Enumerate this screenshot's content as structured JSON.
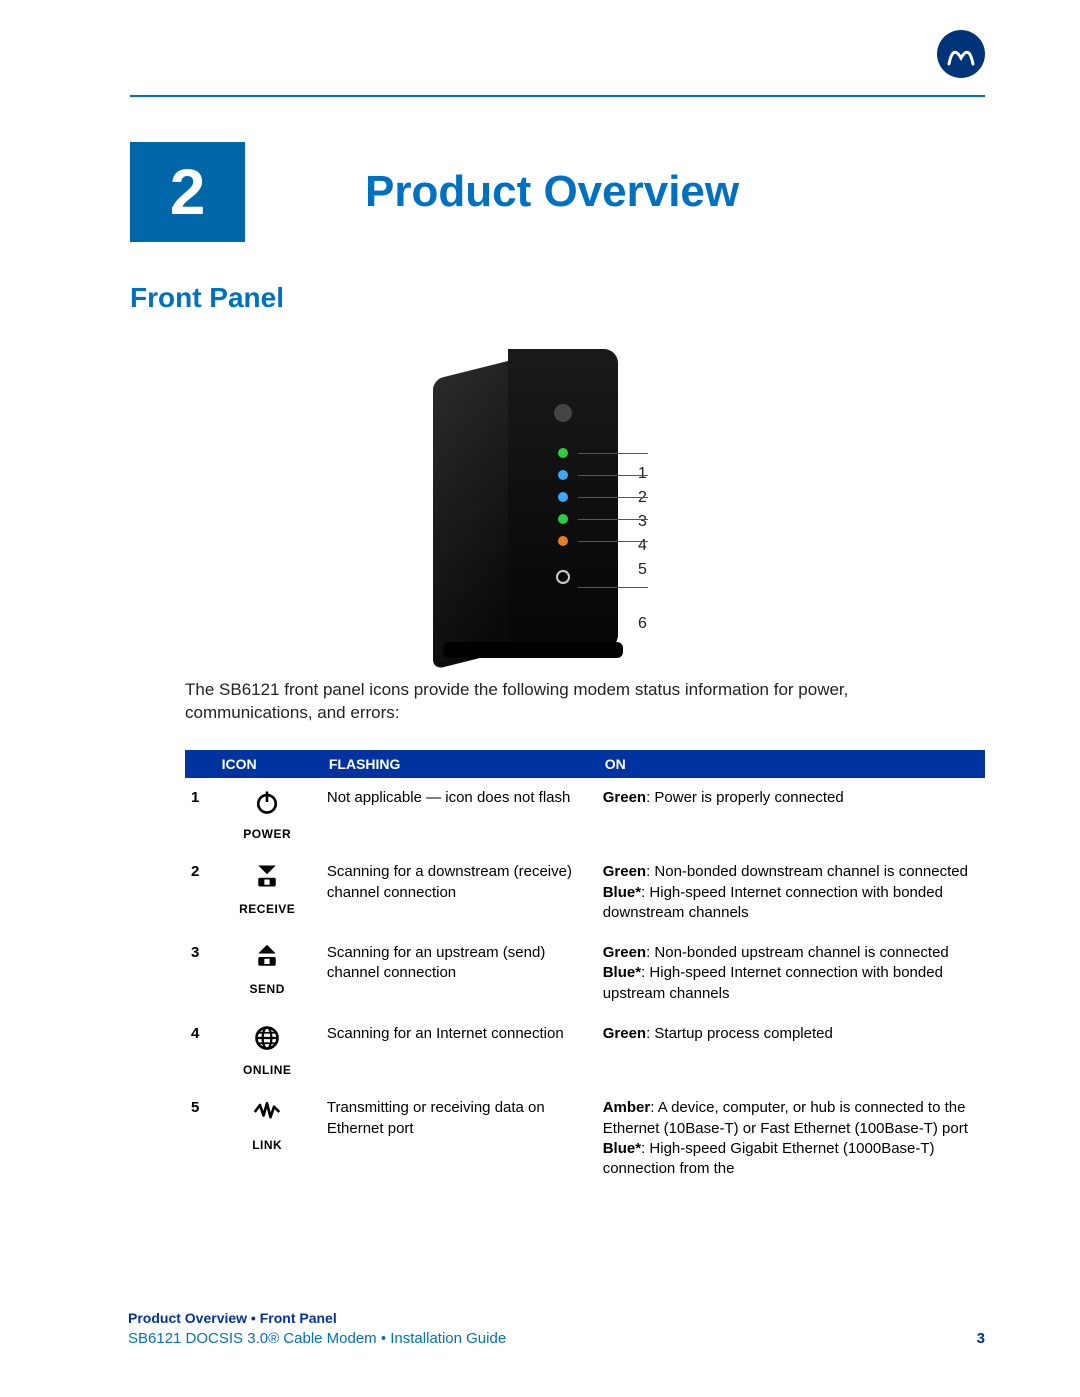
{
  "header": {
    "chapter_number": "2",
    "chapter_title": "Product Overview",
    "section_title": "Front Panel"
  },
  "figure": {
    "callouts": [
      "1",
      "2",
      "3",
      "4",
      "5",
      "6"
    ],
    "led_colors": [
      "#2ecc40",
      "#3fa9f5",
      "#3fa9f5",
      "#2ecc40",
      "#e67e22"
    ]
  },
  "intro": "The SB6121 front panel icons provide the following modem status information for power, communications, and errors:",
  "table": {
    "headers": {
      "icon": "ICON",
      "flashing": "FLASHING",
      "on": "ON"
    },
    "rows": [
      {
        "num": "1",
        "icon_name": "power-icon",
        "icon_label": "POWER",
        "flashing": "Not applicable — icon does not flash",
        "on": "<b>Green</b>: Power is properly connected"
      },
      {
        "num": "2",
        "icon_name": "receive-icon",
        "icon_label": "RECEIVE",
        "flashing": "Scanning for a downstream (receive) channel connection",
        "on": "<b>Green</b>: Non-bonded downstream channel is connected<br><b>Blue*</b>: High-speed Internet connection with bonded downstream channels"
      },
      {
        "num": "3",
        "icon_name": "send-icon",
        "icon_label": "SEND",
        "flashing": "Scanning for an upstream (send) channel connection",
        "on": "<b>Green</b>: Non-bonded upstream channel is connected<br><b>Blue*</b>: High-speed Internet connection with bonded upstream channels"
      },
      {
        "num": "4",
        "icon_name": "online-icon",
        "icon_label": "ONLINE",
        "flashing": "Scanning for an Internet connection",
        "on": "<b>Green</b>: Startup process completed"
      },
      {
        "num": "5",
        "icon_name": "link-icon",
        "icon_label": "LINK",
        "flashing": "Transmitting or receiving data on Ethernet port",
        "on": "<b>Amber</b>: A device, computer, or hub is connected to the Ethernet (10Base-T) or Fast Ethernet (100Base-T) port<br><b>Blue*</b>: High-speed Gigabit Ethernet (1000Base-T) connection from the"
      }
    ]
  },
  "footer": {
    "breadcrumb": "Product Overview • Front Panel",
    "guide": "SB6121 DOCSIS 3.0® Cable Modem • Installation Guide",
    "page": "3"
  },
  "colors": {
    "brand_blue": "#0070c0",
    "header_blue": "#0033a0",
    "box_blue": "#0068a8"
  }
}
